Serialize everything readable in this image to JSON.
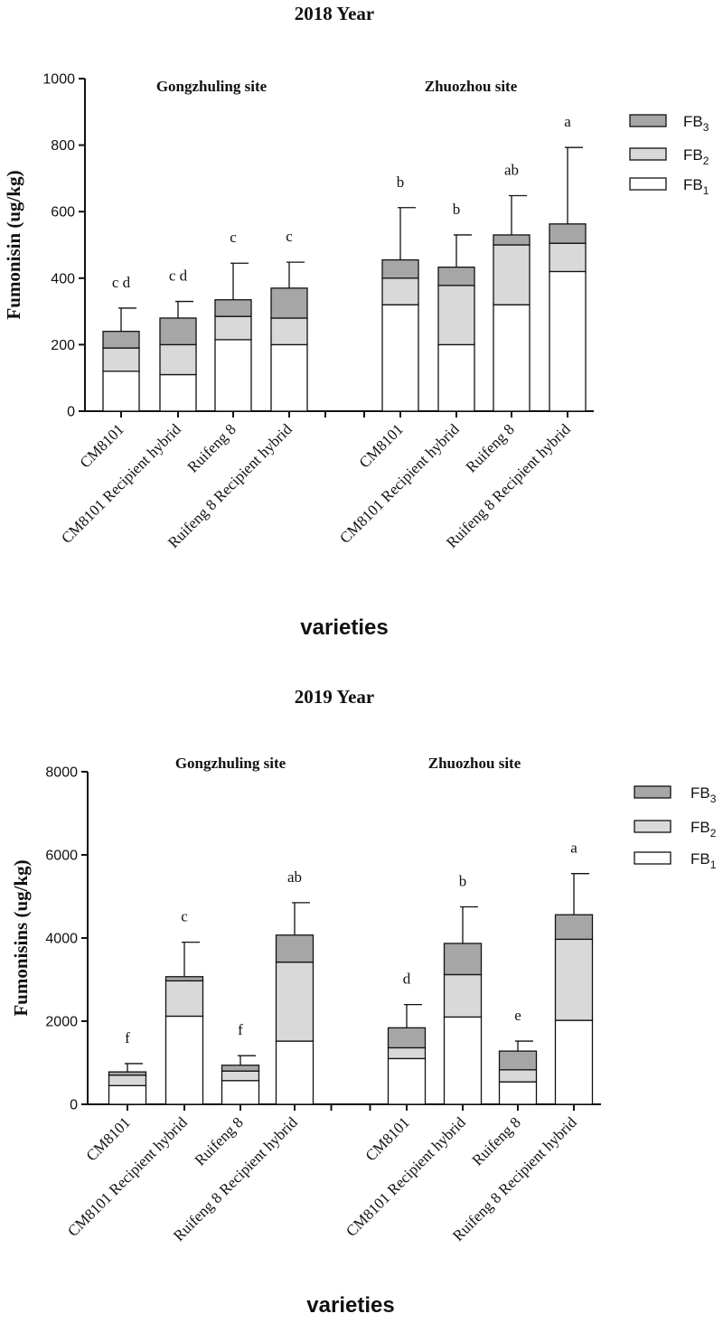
{
  "chart_data": [
    {
      "type": "bar",
      "stacked": true,
      "title": "2018 Year",
      "ylabel": "Fumonisin (ug/kg)",
      "xlabel": "varieties",
      "ylim": [
        0,
        1000
      ],
      "yticks": [
        0,
        200,
        400,
        600,
        800,
        1000
      ],
      "sites": [
        "Gongzhuling site",
        "Zhuozhou site"
      ],
      "categories": [
        "CM8101",
        "CM8101 Recipient hybrid",
        "Ruifeng 8",
        "Ruifeng 8 Recipient hybrid",
        "CM8101",
        "CM8101 Recipient hybrid",
        "Ruifeng 8",
        "Ruifeng 8 Recipient hybrid"
      ],
      "series": [
        {
          "name": "FB1",
          "label_main": "FB",
          "label_sub": "1",
          "values": [
            120,
            110,
            215,
            200,
            320,
            200,
            320,
            420
          ]
        },
        {
          "name": "FB2",
          "label_main": "FB",
          "label_sub": "2",
          "values": [
            70,
            90,
            70,
            80,
            80,
            178,
            180,
            85
          ]
        },
        {
          "name": "FB3",
          "label_main": "FB",
          "label_sub": "3",
          "values": [
            50,
            80,
            50,
            90,
            55,
            55,
            30,
            58
          ]
        }
      ],
      "error_top": [
        310,
        330,
        445,
        448,
        612,
        530,
        648,
        793
      ],
      "significance": [
        "c d",
        "c d",
        "c",
        "c",
        "b",
        "b",
        "ab",
        "a"
      ]
    },
    {
      "type": "bar",
      "stacked": true,
      "title": "2019 Year",
      "ylabel": "Fumonisins (ug/kg)",
      "xlabel": "varieties",
      "ylim": [
        0,
        8000
      ],
      "yticks": [
        0,
        2000,
        4000,
        6000,
        8000
      ],
      "sites": [
        "Gongzhuling site",
        "Zhuozhou site"
      ],
      "categories": [
        "CM8101",
        "CM8101 Recipient hybrid",
        "Ruifeng 8",
        "Ruifeng 8 Recipient hybrid",
        "CM8101",
        "CM8101 Recipient hybrid",
        "Ruifeng 8",
        "Ruifeng 8 Recipient hybrid"
      ],
      "series": [
        {
          "name": "FB1",
          "label_main": "FB",
          "label_sub": "1",
          "values": [
            450,
            2120,
            570,
            1520,
            1100,
            2100,
            540,
            2020
          ]
        },
        {
          "name": "FB2",
          "label_main": "FB",
          "label_sub": "2",
          "values": [
            250,
            850,
            230,
            1900,
            260,
            1020,
            290,
            1950
          ]
        },
        {
          "name": "FB3",
          "label_main": "FB",
          "label_sub": "3",
          "values": [
            80,
            100,
            140,
            650,
            480,
            750,
            450,
            590
          ]
        }
      ],
      "error_top": [
        980,
        3900,
        1170,
        4850,
        2400,
        4750,
        1520,
        5550
      ],
      "significance": [
        "f",
        "c",
        "f",
        "ab",
        "d",
        "b",
        "e",
        "a"
      ]
    }
  ],
  "colors": {
    "FB1": "#ffffff",
    "FB2": "#d9d9d9",
    "FB3": "#a6a6a6",
    "axis": "#111111"
  }
}
